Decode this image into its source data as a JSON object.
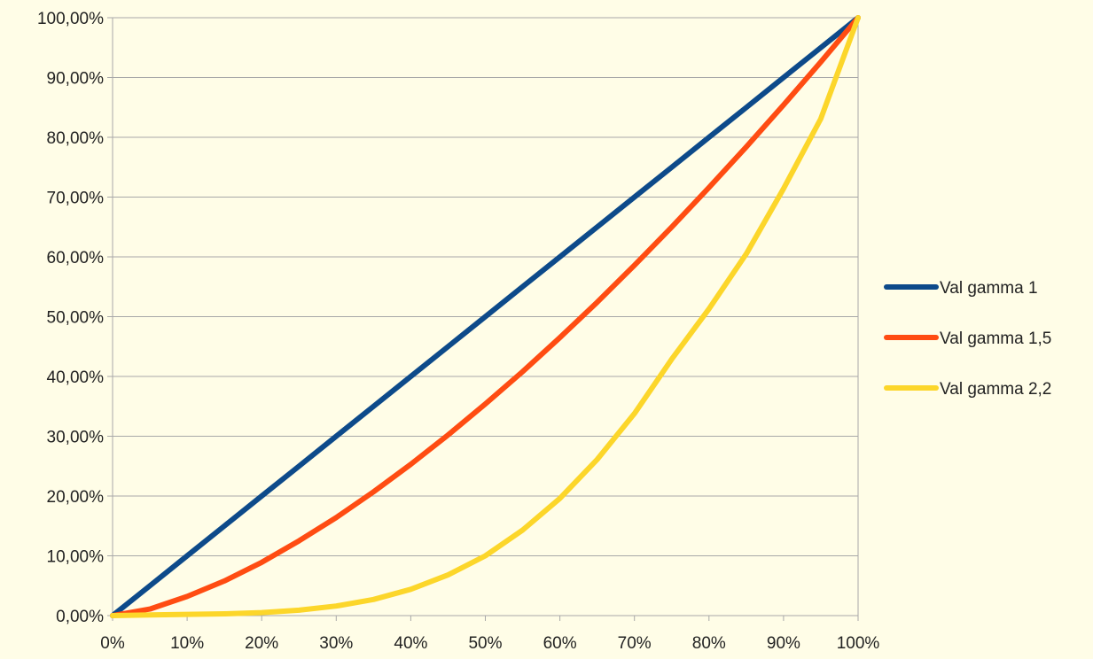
{
  "chart_data": {
    "type": "line",
    "title": "",
    "xlabel": "",
    "ylabel": "",
    "x": [
      0,
      5,
      10,
      15,
      20,
      25,
      30,
      35,
      40,
      45,
      50,
      55,
      60,
      65,
      70,
      75,
      80,
      85,
      90,
      95,
      100
    ],
    "x_tick_labels": [
      "0%",
      "10%",
      "20%",
      "30%",
      "40%",
      "50%",
      "60%",
      "70%",
      "80%",
      "90%",
      "100%"
    ],
    "y_tick_labels": [
      "0,00%",
      "10,00%",
      "20,00%",
      "30,00%",
      "40,00%",
      "50,00%",
      "60,00%",
      "70,00%",
      "80,00%",
      "90,00%",
      "100,00%"
    ],
    "xlim": [
      0,
      100
    ],
    "ylim": [
      0,
      100
    ],
    "grid": "horizontal",
    "legend_position": "right",
    "series": [
      {
        "name": "Val gamma 1",
        "color": "#0d4a8a",
        "values": [
          0,
          5,
          10,
          15,
          20,
          25,
          30,
          35,
          40,
          45,
          50,
          55,
          60,
          65,
          70,
          75,
          80,
          85,
          90,
          95,
          100
        ]
      },
      {
        "name": "Val gamma 1,5",
        "color": "#ff4c12",
        "values": [
          0,
          1.1,
          3.2,
          5.8,
          8.9,
          12.5,
          16.4,
          20.7,
          25.3,
          30.2,
          35.4,
          40.8,
          46.5,
          52.4,
          58.6,
          65,
          71.6,
          78.4,
          85.4,
          92.6,
          100
        ]
      },
      {
        "name": "Val gamma 2,2",
        "color": "#fcd62a",
        "values": [
          0,
          0.1,
          0.2,
          0.3,
          0.5,
          0.9,
          1.6,
          2.7,
          4.4,
          6.8,
          10,
          14.3,
          19.6,
          26.1,
          33.8,
          42.9,
          51.3,
          60.5,
          71.4,
          83.1,
          100
        ]
      }
    ]
  }
}
